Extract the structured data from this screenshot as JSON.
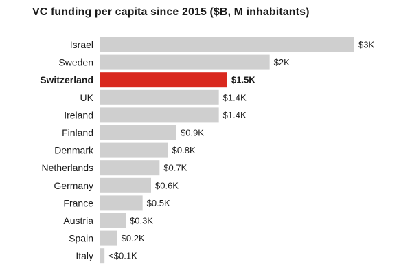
{
  "chart_data": {
    "type": "bar",
    "orientation": "horizontal",
    "title": "VC funding per capita since 2015 ($B, M inhabitants)",
    "xlabel": "",
    "ylabel": "",
    "grid": false,
    "categories": [
      "Israel",
      "Sweden",
      "Switzerland",
      "UK",
      "Ireland",
      "Finland",
      "Denmark",
      "Netherlands",
      "Germany",
      "France",
      "Austria",
      "Spain",
      "Italy"
    ],
    "values": [
      3000,
      2000,
      1500,
      1400,
      1400,
      900,
      800,
      700,
      600,
      500,
      300,
      200,
      50
    ],
    "value_labels": [
      "$3K",
      "$2K",
      "$1.5K",
      "$1.4K",
      "$1.4K",
      "$0.9K",
      "$0.8K",
      "$0.7K",
      "$0.6K",
      "$0.5K",
      "$0.3K",
      "$0.2K",
      "<$0.1K"
    ],
    "highlight": "Switzerland",
    "colors": {
      "bar": "#cfcfcf",
      "highlight": "#d9281e",
      "text": "#1a1a1a"
    }
  }
}
